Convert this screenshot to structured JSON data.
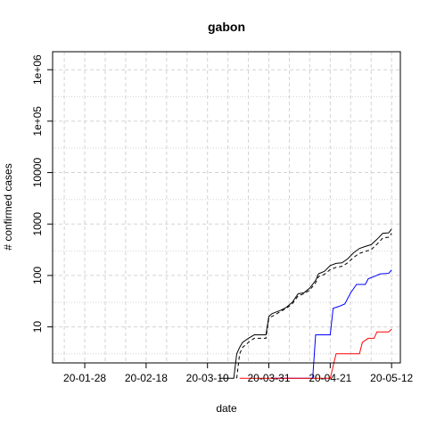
{
  "chart_data": {
    "type": "line",
    "title": "gabon",
    "xlabel": "date",
    "ylabel": "# confirmed cases",
    "y_scale": "log",
    "y_ticks": [
      "10",
      "100",
      "1000",
      "10000",
      "1e+05",
      "1e+06"
    ],
    "x_ticks": [
      "20-01-28",
      "20-02-18",
      "20-03-10",
      "20-03-31",
      "20-04-21",
      "20-05-12"
    ],
    "x_range": [
      "2020-01-17",
      "2020-05-15"
    ],
    "y_range_log10": [
      0.3,
      6.35
    ],
    "grid": true,
    "series": [
      {
        "color": "#000000",
        "dash": "solid",
        "points": [
          [
            "2020-03-14",
            1
          ],
          [
            "2020-03-19",
            1
          ],
          [
            "2020-03-20",
            3
          ],
          [
            "2020-03-21",
            4
          ],
          [
            "2020-03-22",
            5
          ],
          [
            "2020-03-24",
            6
          ],
          [
            "2020-03-26",
            7
          ],
          [
            "2020-03-30",
            7
          ],
          [
            "2020-03-31",
            16
          ],
          [
            "2020-04-01",
            18
          ],
          [
            "2020-04-02",
            19
          ],
          [
            "2020-04-04",
            21
          ],
          [
            "2020-04-06",
            24
          ],
          [
            "2020-04-08",
            30
          ],
          [
            "2020-04-10",
            44
          ],
          [
            "2020-04-12",
            46
          ],
          [
            "2020-04-14",
            57
          ],
          [
            "2020-04-16",
            80
          ],
          [
            "2020-04-17",
            108
          ],
          [
            "2020-04-19",
            120
          ],
          [
            "2020-04-21",
            156
          ],
          [
            "2020-04-23",
            172
          ],
          [
            "2020-04-25",
            176
          ],
          [
            "2020-04-27",
            211
          ],
          [
            "2020-04-29",
            276
          ],
          [
            "2020-05-01",
            335
          ],
          [
            "2020-05-03",
            367
          ],
          [
            "2020-05-05",
            397
          ],
          [
            "2020-05-07",
            504
          ],
          [
            "2020-05-09",
            661
          ],
          [
            "2020-05-11",
            674
          ],
          [
            "2020-05-12",
            802
          ]
        ]
      },
      {
        "color": "#000000",
        "dash": "dashed",
        "points": [
          [
            "2020-03-20",
            1
          ],
          [
            "2020-03-21",
            3
          ],
          [
            "2020-03-22",
            4
          ],
          [
            "2020-03-24",
            5
          ],
          [
            "2020-03-26",
            6
          ],
          [
            "2020-03-30",
            6
          ],
          [
            "2020-03-31",
            15
          ],
          [
            "2020-04-02",
            17
          ],
          [
            "2020-04-04",
            20
          ],
          [
            "2020-04-06",
            23
          ],
          [
            "2020-04-08",
            28
          ],
          [
            "2020-04-10",
            40
          ],
          [
            "2020-04-12",
            44
          ],
          [
            "2020-04-14",
            52
          ],
          [
            "2020-04-16",
            72
          ],
          [
            "2020-04-17",
            95
          ],
          [
            "2020-04-19",
            105
          ],
          [
            "2020-04-21",
            130
          ],
          [
            "2020-04-23",
            144
          ],
          [
            "2020-04-25",
            150
          ],
          [
            "2020-04-27",
            176
          ],
          [
            "2020-04-29",
            225
          ],
          [
            "2020-05-01",
            269
          ],
          [
            "2020-05-03",
            293
          ],
          [
            "2020-05-05",
            318
          ],
          [
            "2020-05-07",
            404
          ],
          [
            "2020-05-09",
            536
          ],
          [
            "2020-05-11",
            555
          ],
          [
            "2020-05-12",
            660
          ]
        ]
      },
      {
        "color": "#0000ff",
        "dash": "solid",
        "points": [
          [
            "2020-04-01",
            1
          ],
          [
            "2020-04-15",
            1
          ],
          [
            "2020-04-16",
            7
          ],
          [
            "2020-04-21",
            7
          ],
          [
            "2020-04-22",
            23
          ],
          [
            "2020-04-24",
            25
          ],
          [
            "2020-04-26",
            28
          ],
          [
            "2020-04-28",
            46
          ],
          [
            "2020-04-30",
            67
          ],
          [
            "2020-05-03",
            67
          ],
          [
            "2020-05-04",
            86
          ],
          [
            "2020-05-06",
            95
          ],
          [
            "2020-05-08",
            107
          ],
          [
            "2020-05-11",
            110
          ],
          [
            "2020-05-12",
            128
          ]
        ]
      },
      {
        "color": "#ff0000",
        "dash": "solid",
        "points": [
          [
            "2020-03-21",
            1
          ],
          [
            "2020-04-21",
            1
          ],
          [
            "2020-04-23",
            3
          ],
          [
            "2020-05-01",
            3
          ],
          [
            "2020-05-02",
            5
          ],
          [
            "2020-05-04",
            6
          ],
          [
            "2020-05-06",
            6
          ],
          [
            "2020-05-07",
            8
          ],
          [
            "2020-05-11",
            8
          ],
          [
            "2020-05-12",
            9
          ]
        ]
      }
    ]
  }
}
